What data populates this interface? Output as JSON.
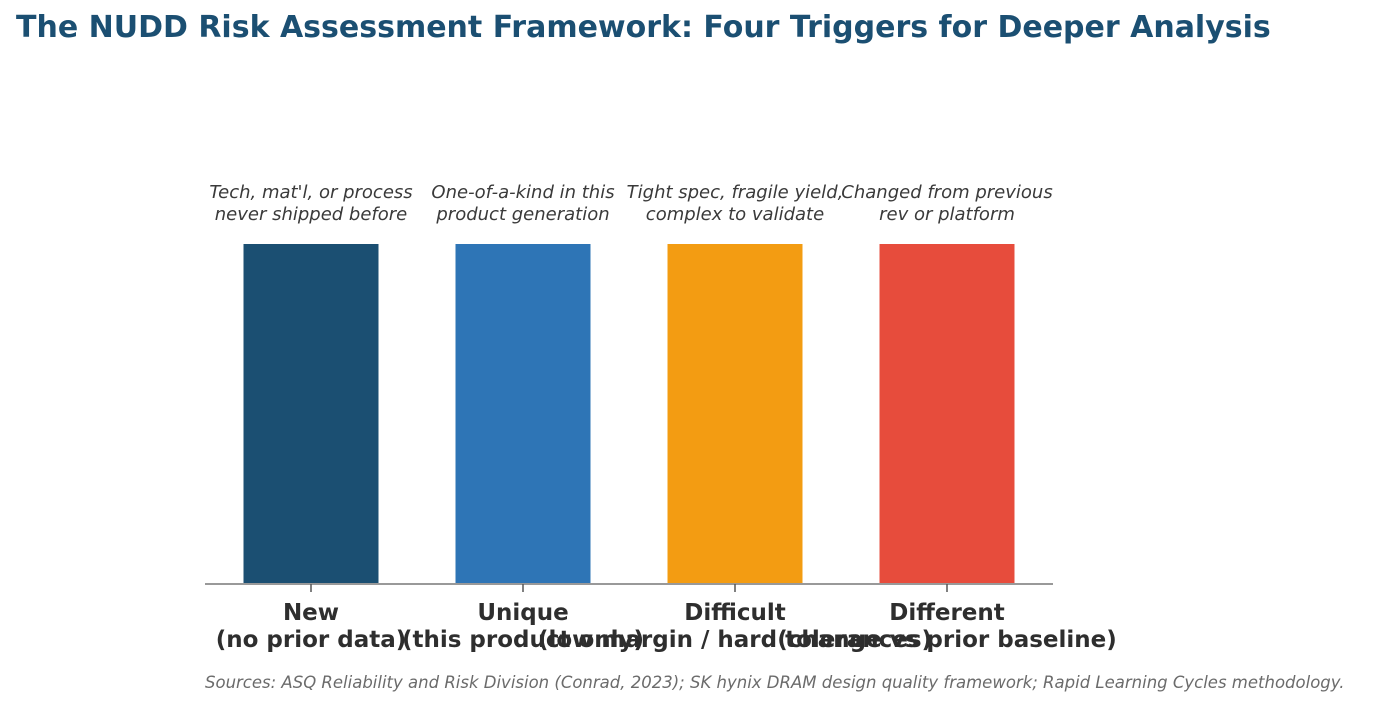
{
  "title": "The NUDD Risk Assessment Framework: Four Triggers for Deeper Analysis",
  "source": "Sources: ASQ Reliability and Risk Division (Conrad, 2023); SK hynix DRAM design quality framework; Rapid Learning Cycles methodology.",
  "chart_data": {
    "type": "bar",
    "title": "The NUDD Risk Assessment Framework: Four Triggers for Deeper Analysis",
    "xlabel": "",
    "ylabel": "",
    "categories": [
      [
        "New",
        "(no prior data)"
      ],
      [
        "Unique",
        "(this product only)"
      ],
      [
        "Difficult",
        "(low margin / hard tolerances)"
      ],
      [
        "Different",
        "(change vs prior baseline)"
      ]
    ],
    "values": [
      1,
      1,
      1,
      1
    ],
    "ylim": [
      0,
      1
    ],
    "colors": [
      "#1b4f72",
      "#2e75b6",
      "#f39c12",
      "#e74c3c"
    ],
    "annotations": [
      [
        "Tech, mat'l, or process",
        "never shipped before"
      ],
      [
        "One-of-a-kind in this",
        "product generation"
      ],
      [
        "Tight spec, fragile yield,",
        "complex to validate"
      ],
      [
        "Changed from previous",
        "rev or platform"
      ]
    ],
    "grid": false,
    "legend": "none",
    "axis_color": "#999999"
  }
}
